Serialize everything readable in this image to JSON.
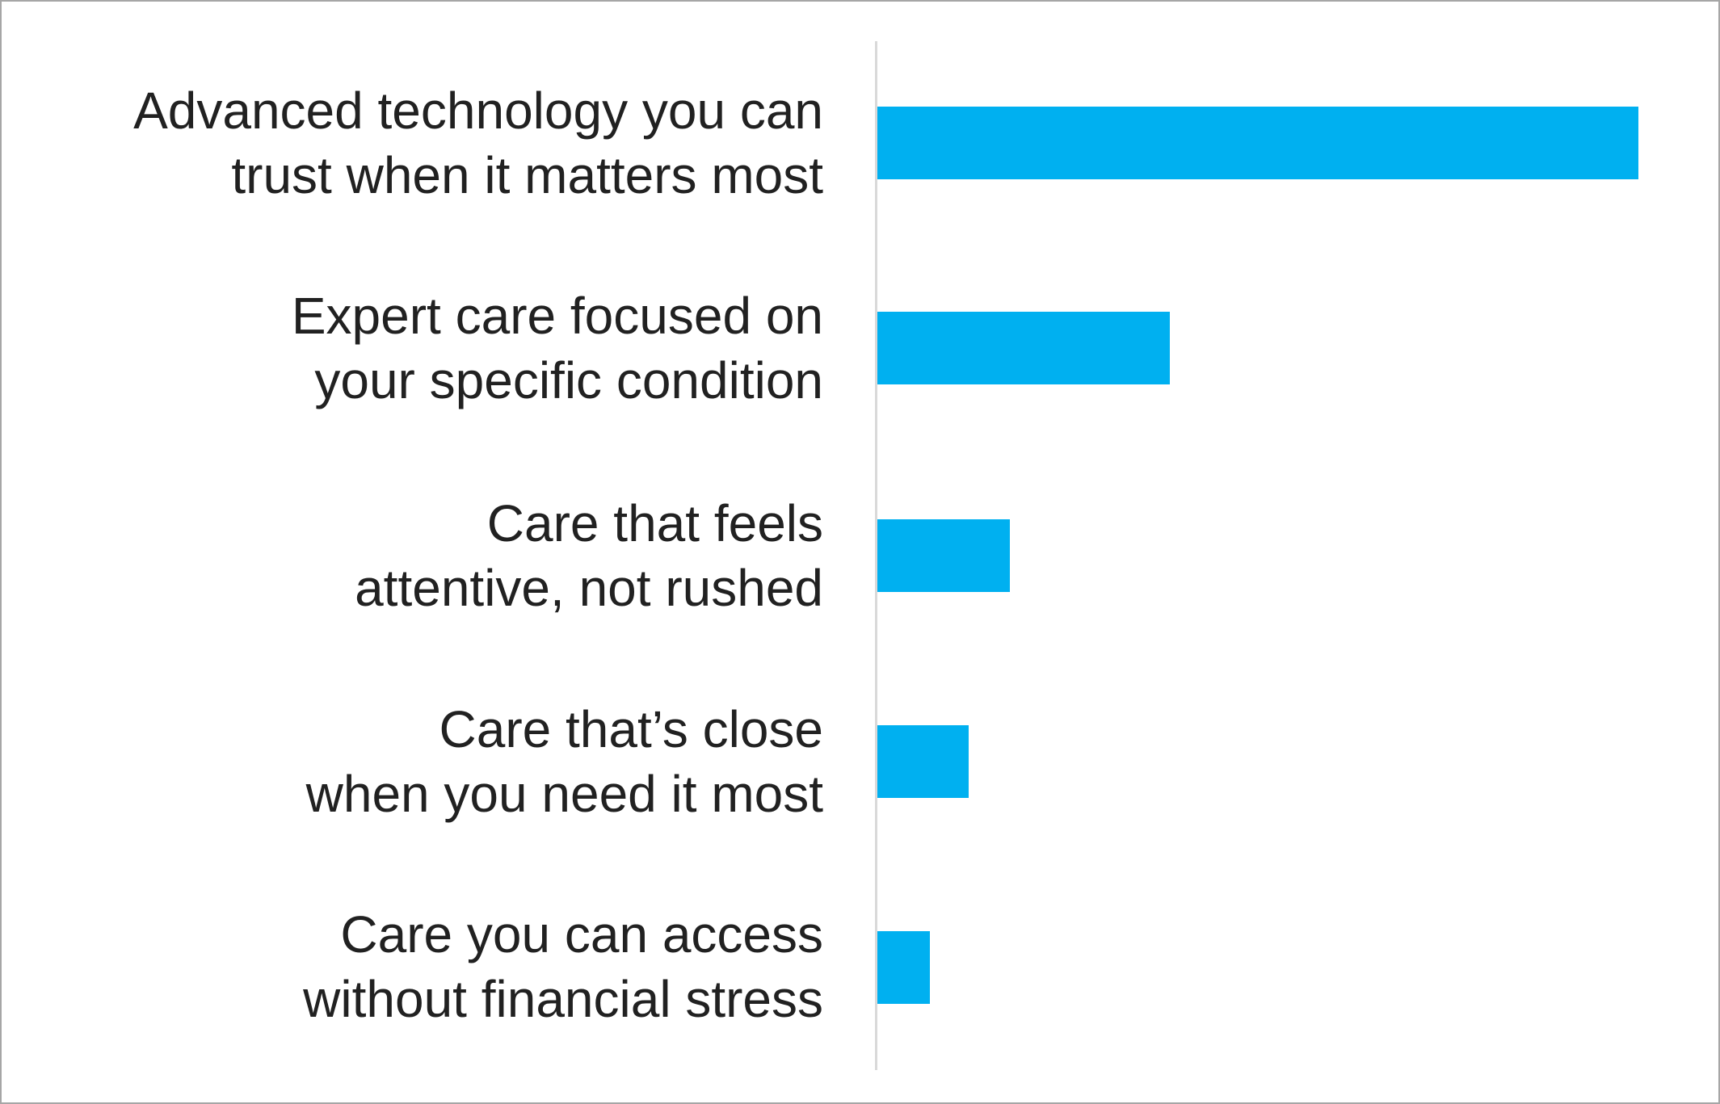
{
  "chart_data": {
    "type": "bar",
    "orientation": "horizontal",
    "title": "",
    "xlabel": "",
    "ylabel": "",
    "categories": [
      "Advanced technology you can trust when it matters most",
      "Expert care focused on your specific condition",
      "Care that feels attentive, not rushed",
      "Care that’s close when you need it most",
      "Care you can access without financial stress"
    ],
    "categories_lines": [
      [
        "Advanced technology you can",
        "trust when it matters most"
      ],
      [
        "Expert care focused on",
        "your specific condition"
      ],
      [
        "Care that feels",
        "attentive, not rushed"
      ],
      [
        "Care that’s close",
        "when you need it most"
      ],
      [
        "Care you can access",
        "without financial stress"
      ]
    ],
    "values": [
      100,
      38.4,
      17.4,
      12,
      6.9
    ],
    "values_unit": "relative bar length, % of longest bar (no value axis, ticks or data labels shown)",
    "bar_color": "#00B0F0",
    "axis_line_color": "#D9D9D9",
    "gridlines": false,
    "legend": false,
    "axis_ticks": false
  },
  "colors": {
    "background": "#FFFFFF",
    "frame_border": "#A6A6A6",
    "label_text": "#212121"
  }
}
